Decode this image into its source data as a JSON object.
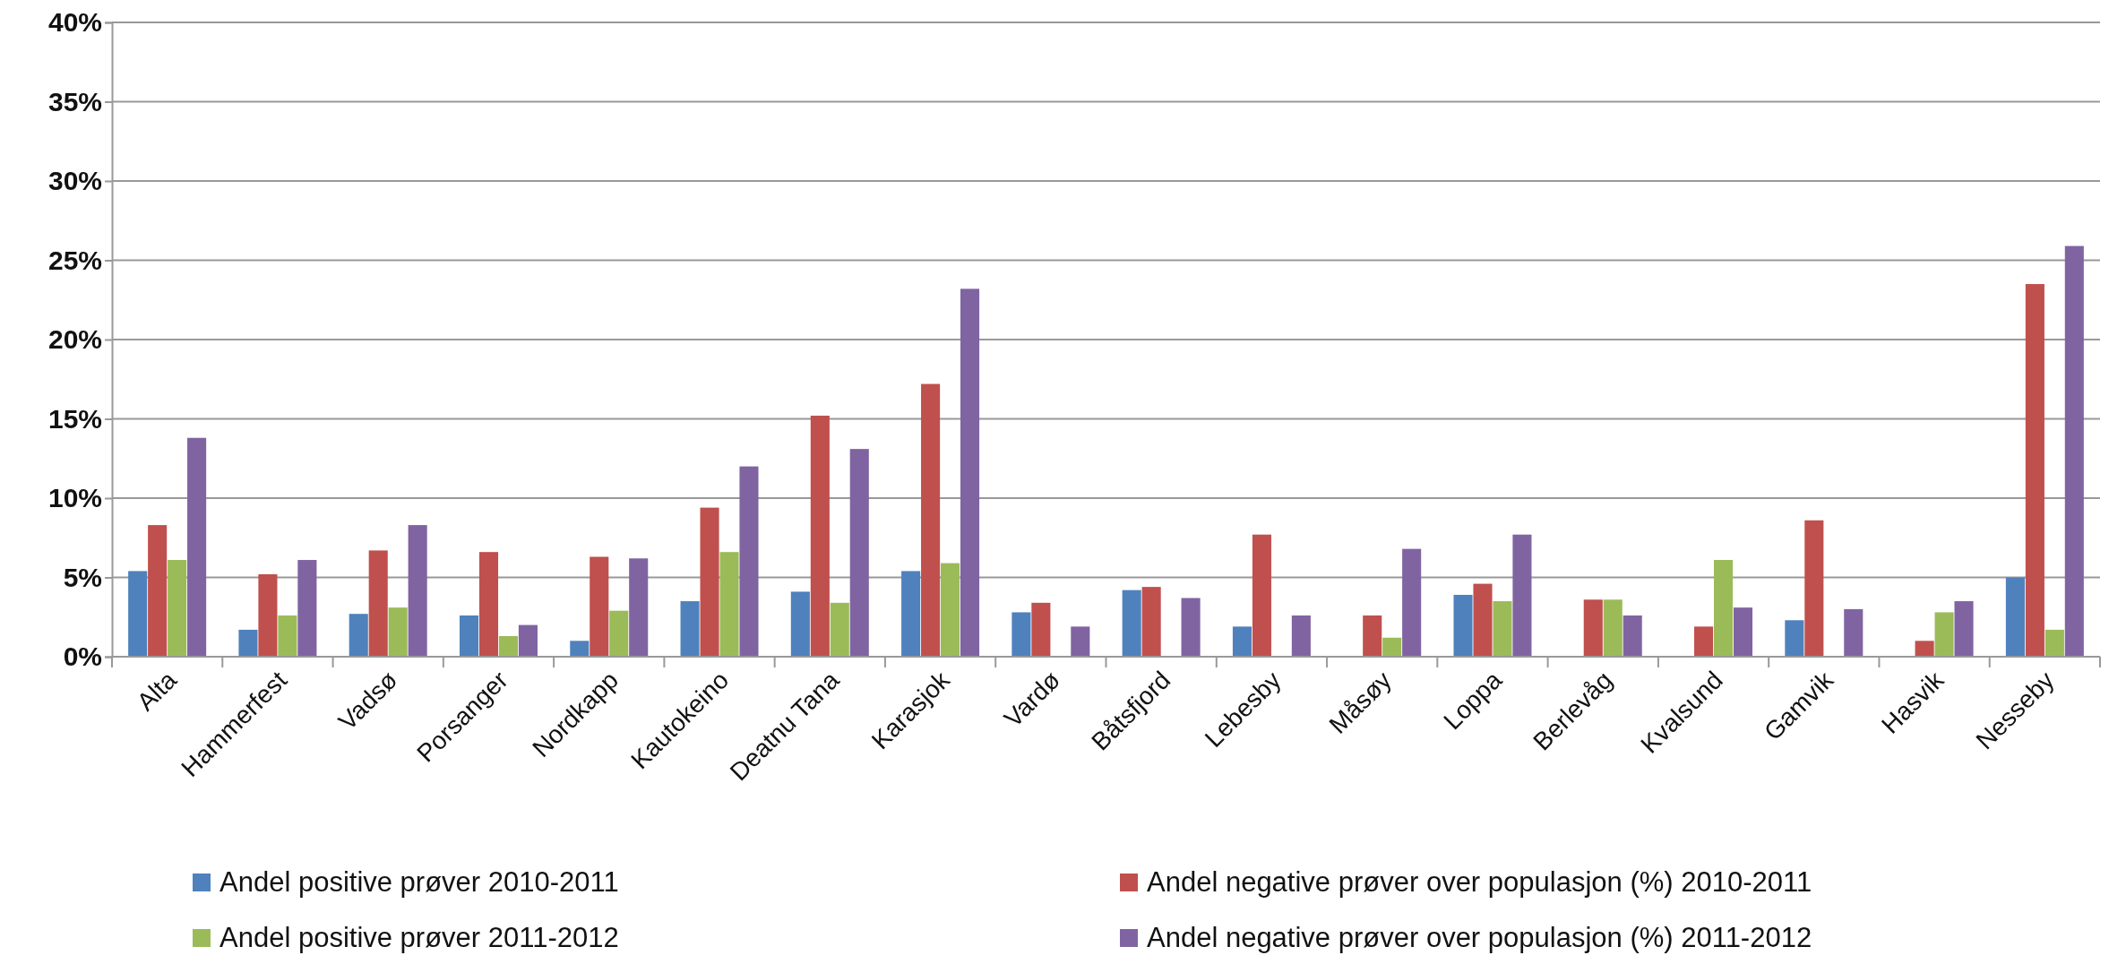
{
  "chart_data": {
    "type": "bar",
    "categories": [
      "Alta",
      "Hammerfest",
      "Vadsø",
      "Porsanger",
      "Nordkapp",
      "Kautokeino",
      "Deatnu Tana",
      "Karasjok",
      "Vardø",
      "Båtsfjord",
      "Lebesby",
      "Måsøy",
      "Loppa",
      "Berlevåg",
      "Kvalsund",
      "Gamvik",
      "Hasvik",
      "Nesseby"
    ],
    "series": [
      {
        "name": "Andel positive prøver 2010-2011",
        "color": "#4f81bd",
        "values": [
          5.4,
          1.7,
          2.7,
          2.6,
          1.0,
          3.5,
          4.1,
          5.4,
          2.8,
          4.2,
          1.9,
          null,
          3.9,
          null,
          null,
          2.3,
          null,
          5.0
        ]
      },
      {
        "name": "Andel negative prøver over populasjon (%) 2010-2011",
        "color": "#c0504d",
        "values": [
          8.3,
          5.2,
          6.7,
          6.6,
          6.3,
          9.4,
          15.2,
          17.2,
          3.4,
          4.4,
          7.7,
          2.6,
          4.6,
          3.6,
          1.9,
          8.6,
          1.0,
          23.5
        ]
      },
      {
        "name": "Andel positive prøver 2011-2012",
        "color": "#9bbb59",
        "values": [
          6.1,
          2.6,
          3.1,
          1.3,
          2.9,
          6.6,
          3.4,
          5.9,
          null,
          null,
          null,
          1.2,
          3.5,
          3.6,
          6.1,
          null,
          2.8,
          1.7
        ]
      },
      {
        "name": "Andel negative prøver over populasjon (%) 2011-2012",
        "color": "#8064a2",
        "values": [
          13.8,
          6.1,
          8.3,
          2.0,
          6.2,
          12.0,
          13.1,
          23.2,
          1.9,
          3.7,
          2.6,
          6.8,
          7.7,
          2.6,
          3.1,
          3.0,
          3.5,
          25.9
        ]
      }
    ],
    "ylim": [
      0,
      40
    ],
    "yticks": [
      {
        "value": 0,
        "label": "0%"
      },
      {
        "value": 5,
        "label": "5%"
      },
      {
        "value": 10,
        "label": "10%"
      },
      {
        "value": 15,
        "label": "15%"
      },
      {
        "value": 20,
        "label": "20%"
      },
      {
        "value": 25,
        "label": "25%"
      },
      {
        "value": 30,
        "label": "30%"
      },
      {
        "value": 35,
        "label": "35%"
      },
      {
        "value": 40,
        "label": "40%"
      }
    ],
    "grid": "y",
    "legend": "bottom"
  }
}
